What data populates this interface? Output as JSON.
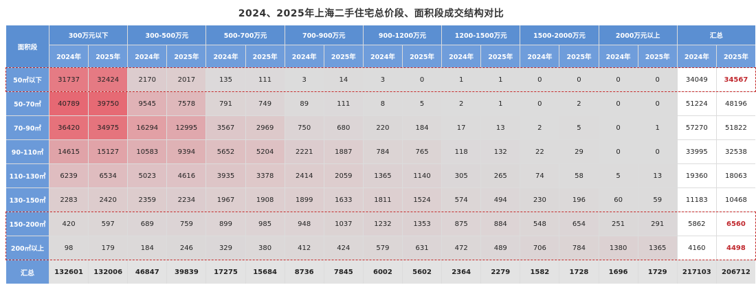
{
  "title": "2024、2025年上海二手住宅总价段、面积段成交结构对比",
  "corner": "面积段",
  "price_bands": [
    "300万元以下",
    "300-500万元",
    "500-700万元",
    "700-900万元",
    "900-1200万元",
    "1200-1500万元",
    "1500-2000万元",
    "2000万元以上",
    "汇总"
  ],
  "years": [
    "2024年",
    "2025年"
  ],
  "highlight_color": "#c0272d",
  "chart_data": {
    "type": "table",
    "title": "2024、2025年上海二手住宅总价段、面积段成交结构对比",
    "columns": [
      "300万元以下",
      "300-500万元",
      "500-700万元",
      "700-900万元",
      "900-1200万元",
      "1200-1500万元",
      "1500-2000万元",
      "2000万元以上",
      "汇总"
    ],
    "sub_columns": [
      "2024年",
      "2025年"
    ],
    "rows": [
      {
        "label": "50㎡以下",
        "values": [
          31737,
          32424,
          2170,
          2017,
          135,
          111,
          3,
          14,
          3,
          0,
          1,
          1,
          0,
          0,
          0,
          0,
          34049,
          34567
        ]
      },
      {
        "label": "50-70㎡",
        "values": [
          40789,
          39750,
          9545,
          7578,
          791,
          749,
          89,
          111,
          8,
          5,
          2,
          1,
          0,
          2,
          0,
          0,
          51224,
          48196
        ]
      },
      {
        "label": "70-90㎡",
        "values": [
          36420,
          34975,
          16294,
          12995,
          3567,
          2969,
          750,
          680,
          220,
          184,
          17,
          13,
          2,
          5,
          0,
          1,
          57270,
          51822
        ]
      },
      {
        "label": "90-110㎡",
        "values": [
          14615,
          15127,
          10583,
          9394,
          5652,
          5204,
          2221,
          1887,
          784,
          765,
          118,
          132,
          22,
          29,
          0,
          0,
          33995,
          32538
        ]
      },
      {
        "label": "110-130㎡",
        "values": [
          6239,
          6534,
          5023,
          4616,
          3935,
          3378,
          2414,
          2059,
          1365,
          1140,
          305,
          265,
          74,
          58,
          5,
          13,
          19360,
          18063
        ]
      },
      {
        "label": "130-150㎡",
        "values": [
          2283,
          2420,
          2359,
          2234,
          1967,
          1908,
          1899,
          1633,
          1811,
          1524,
          574,
          494,
          230,
          196,
          60,
          59,
          11183,
          10468
        ]
      },
      {
        "label": "150-200㎡",
        "values": [
          420,
          597,
          689,
          759,
          899,
          985,
          948,
          1037,
          1232,
          1353,
          875,
          884,
          548,
          654,
          251,
          291,
          5862,
          6560
        ]
      },
      {
        "label": "200㎡以上",
        "values": [
          98,
          179,
          184,
          246,
          329,
          380,
          412,
          424,
          579,
          631,
          472,
          489,
          706,
          784,
          1380,
          1365,
          4160,
          4498
        ]
      }
    ],
    "total": {
      "label": "汇总",
      "values": [
        132601,
        132006,
        46847,
        39839,
        17275,
        15684,
        8736,
        7845,
        6002,
        5602,
        2364,
        2279,
        1582,
        1728,
        1696,
        1729,
        217103,
        206712
      ]
    },
    "highlighted_cells": [
      {
        "row": "50㎡以下",
        "col": "汇总 2025年"
      },
      {
        "row": "150-200㎡",
        "col": "汇总 2025年"
      },
      {
        "row": "200㎡以上",
        "col": "汇总 2025年"
      }
    ],
    "highlighted_rows": [
      "50㎡以下",
      "150-200㎡",
      "200㎡以上"
    ]
  }
}
